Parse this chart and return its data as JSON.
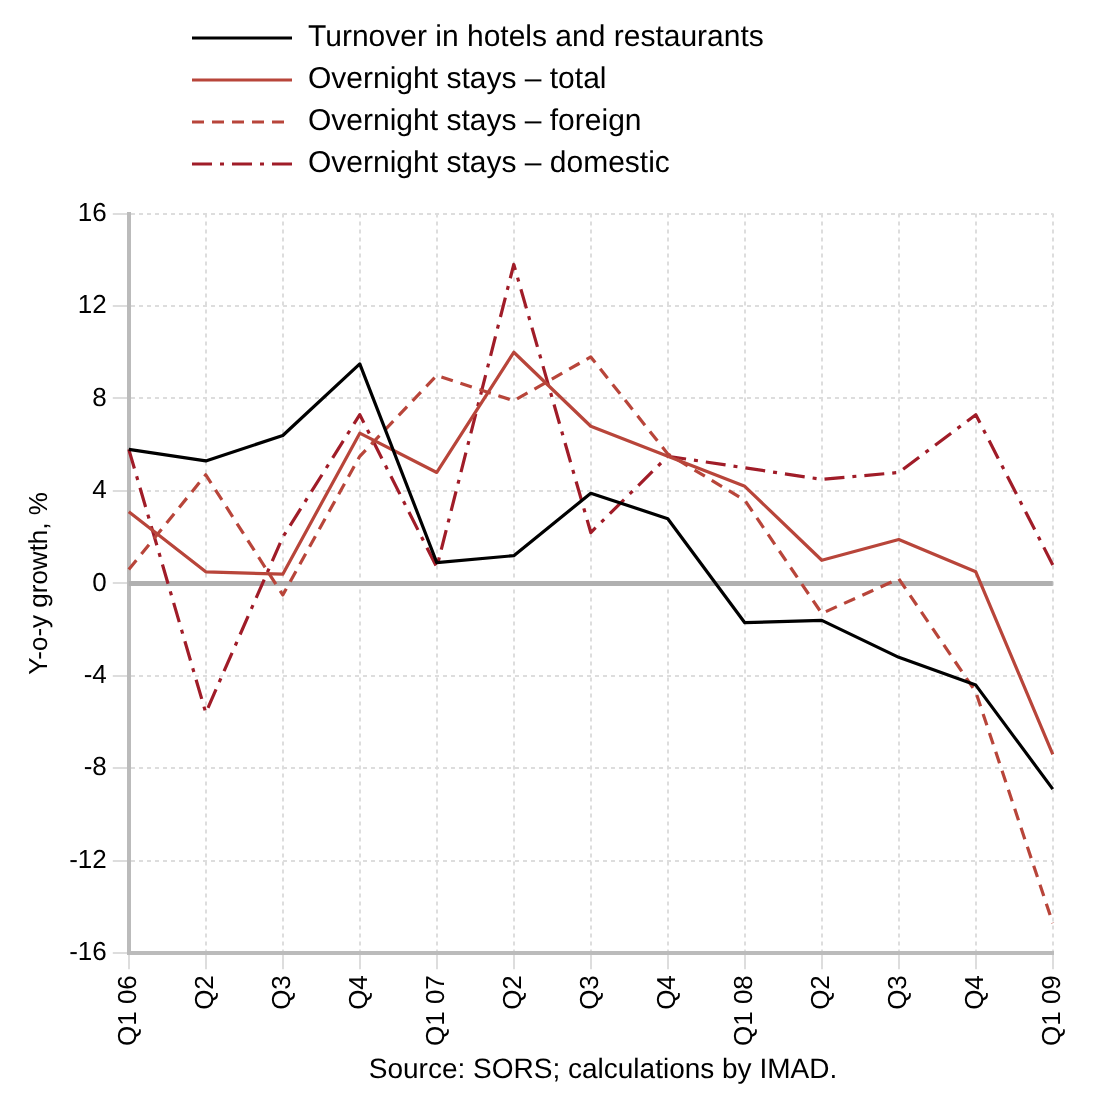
{
  "chart_data": {
    "type": "line",
    "ylabel": "Y-o-y growth, %",
    "categories": [
      "Q1 06",
      "Q2",
      "Q3",
      "Q4",
      "Q1 07",
      "Q2",
      "Q3",
      "Q4",
      "Q1 08",
      "Q2",
      "Q3",
      "Q4",
      "Q1 09"
    ],
    "series": [
      {
        "name": "Turnover in hotels and restaurants",
        "color": "#000000",
        "line_style": "solid",
        "values": [
          5.8,
          5.3,
          6.4,
          9.5,
          0.9,
          1.2,
          3.9,
          2.8,
          -1.7,
          -1.6,
          -3.2,
          -4.4,
          -8.9
        ]
      },
      {
        "name": "Overnight stays – total",
        "color": "#b8453a",
        "line_style": "solid",
        "values": [
          3.1,
          0.5,
          0.4,
          6.5,
          4.8,
          10.0,
          6.8,
          5.5,
          4.2,
          1.0,
          1.9,
          0.5,
          -7.4
        ]
      },
      {
        "name": "Overnight stays – foreign",
        "color": "#b8453a",
        "line_style": "dashed",
        "values": [
          0.6,
          4.7,
          -0.5,
          5.5,
          9.0,
          7.9,
          9.8,
          5.6,
          3.6,
          -1.3,
          0.2,
          -4.7,
          -14.7
        ]
      },
      {
        "name": "Overnight stays – domestic",
        "color": "#a01c28",
        "line_style": "dashdot",
        "values": [
          5.8,
          -5.6,
          2.0,
          7.3,
          0.7,
          13.8,
          2.2,
          5.5,
          5.0,
          4.5,
          4.8,
          7.3,
          0.8
        ]
      }
    ],
    "ylim": [
      -16,
      16
    ],
    "yticks": [
      -16,
      -12,
      -8,
      -4,
      0,
      4,
      8,
      12,
      16
    ],
    "grid": true,
    "ref_lines": [
      {
        "axis": "y",
        "value": 0,
        "color": "#b0b0b0"
      }
    ],
    "legend": "top",
    "marker": "none",
    "annotations": [
      "Source: SORS; calculations by IMAD."
    ]
  }
}
